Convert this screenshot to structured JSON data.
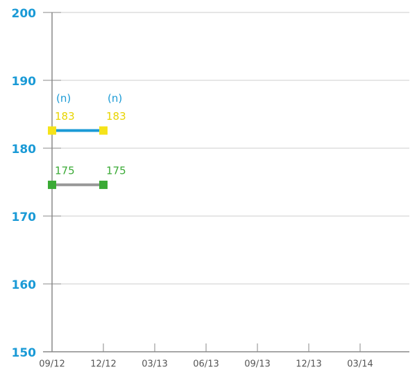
{
  "chart_data": {
    "type": "line",
    "categories": [
      "09/12",
      "12/12",
      "03/13",
      "06/13",
      "09/13",
      "12/13",
      "03/14"
    ],
    "series": [
      {
        "color": "#1a9ad6",
        "marker_color": "#f5e31a",
        "label_color": "#e8d400",
        "values": [
          182.6,
          182.6,
          null,
          null,
          null,
          null,
          null
        ],
        "value_labels": [
          "183",
          "183",
          null,
          null,
          null,
          null,
          null
        ],
        "annotations": [
          "(n)",
          "(n)",
          null,
          null,
          null,
          null,
          null
        ],
        "annotation_color": "#1a9ad6"
      },
      {
        "color": "#999999",
        "marker_color": "#3aaa35",
        "label_color": "#3aaa35",
        "values": [
          174.6,
          174.6,
          null,
          null,
          null,
          null,
          null
        ],
        "value_labels": [
          "175",
          "175",
          null,
          null,
          null,
          null,
          null
        ]
      }
    ],
    "ylim": [
      150,
      200
    ],
    "yticks": [
      150,
      160,
      170,
      180,
      190,
      200
    ],
    "grid": true
  }
}
